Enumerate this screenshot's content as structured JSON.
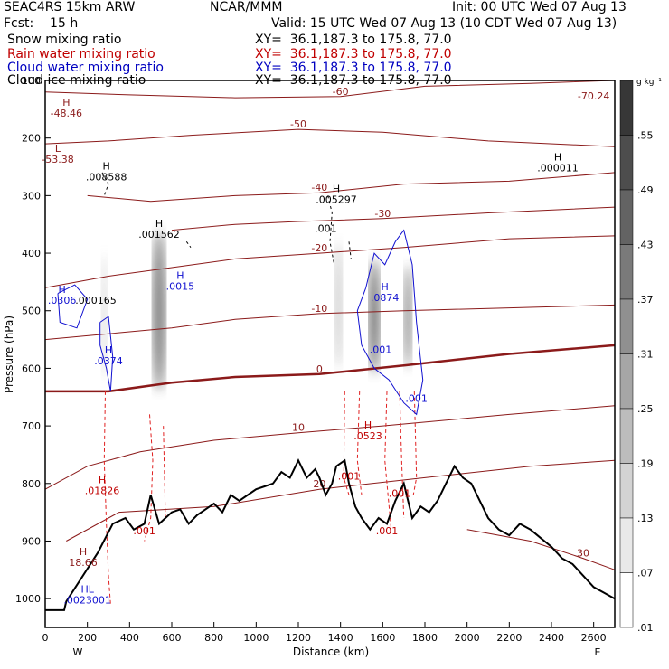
{
  "header": {
    "model": "SEAC4RS 15km ARW",
    "center": "NCAR/MMM",
    "init": "Init: 00 UTC Wed 07 Aug 13",
    "fcst": "Fcst:    15 h",
    "valid": "Valid: 15 UTC Wed 07 Aug 13 (10 CDT Wed 07 Aug 13)",
    "fields": [
      {
        "name": "Snow mixing ratio",
        "xy": "XY=  36.1,187.3 to 175.8, 77.0",
        "color": "#000000"
      },
      {
        "name": "Rain water mixing ratio",
        "xy": "XY=  36.1,187.3 to 175.8, 77.0",
        "color": "#c00000"
      },
      {
        "name": "Cloud water mixing ratio",
        "xy": "XY=  36.1,187.3 to 175.8, 77.0",
        "color": "#0000c0"
      },
      {
        "name": "Cloud ice mixing ratio",
        "xy": "XY=  36.1,187.3 to 175.8, 77.0",
        "color": "#000000"
      }
    ]
  },
  "chart_data": {
    "type": "cross-section",
    "xlabel": "Distance (km)",
    "ylabel": "Pressure (hPa)",
    "xlim": [
      0,
      2700
    ],
    "ylim": [
      1050,
      100
    ],
    "x_ticks": [
      0,
      200,
      400,
      600,
      800,
      1000,
      1200,
      1400,
      1600,
      1800,
      2000,
      2200,
      2400,
      2600
    ],
    "y_ticks": [
      100,
      200,
      300,
      400,
      500,
      600,
      700,
      800,
      900,
      1000
    ],
    "endpoints": {
      "left": "W",
      "right": "E"
    },
    "colorbar": {
      "unit": "g kg⁻¹",
      "labels": [
        ".55",
        ".49",
        ".43",
        ".37",
        ".31",
        ".25",
        ".19",
        ".13",
        ".07",
        ".01"
      ]
    },
    "colors": {
      "temperature": "#8b1a1a",
      "rain": "#e02020",
      "cloud": "#1010d0",
      "ice": "#000000",
      "terrain": "#000000"
    },
    "terrain": [
      [
        0,
        1020
      ],
      [
        90,
        1020
      ],
      [
        100,
        1005
      ],
      [
        250,
        920
      ],
      [
        320,
        870
      ],
      [
        380,
        860
      ],
      [
        420,
        880
      ],
      [
        470,
        870
      ],
      [
        500,
        820
      ],
      [
        540,
        870
      ],
      [
        570,
        860
      ],
      [
        600,
        850
      ],
      [
        640,
        845
      ],
      [
        680,
        870
      ],
      [
        720,
        855
      ],
      [
        760,
        845
      ],
      [
        800,
        835
      ],
      [
        840,
        850
      ],
      [
        880,
        820
      ],
      [
        920,
        830
      ],
      [
        960,
        820
      ],
      [
        1000,
        810
      ],
      [
        1040,
        805
      ],
      [
        1080,
        800
      ],
      [
        1120,
        780
      ],
      [
        1160,
        790
      ],
      [
        1200,
        760
      ],
      [
        1240,
        790
      ],
      [
        1280,
        775
      ],
      [
        1300,
        790
      ],
      [
        1330,
        820
      ],
      [
        1360,
        800
      ],
      [
        1380,
        770
      ],
      [
        1420,
        760
      ],
      [
        1440,
        800
      ],
      [
        1470,
        840
      ],
      [
        1500,
        860
      ],
      [
        1540,
        880
      ],
      [
        1580,
        860
      ],
      [
        1620,
        870
      ],
      [
        1660,
        830
      ],
      [
        1700,
        800
      ],
      [
        1740,
        860
      ],
      [
        1780,
        840
      ],
      [
        1820,
        850
      ],
      [
        1860,
        830
      ],
      [
        1900,
        800
      ],
      [
        1940,
        770
      ],
      [
        1980,
        790
      ],
      [
        2020,
        800
      ],
      [
        2060,
        830
      ],
      [
        2100,
        860
      ],
      [
        2150,
        880
      ],
      [
        2200,
        890
      ],
      [
        2250,
        870
      ],
      [
        2300,
        880
      ],
      [
        2350,
        895
      ],
      [
        2400,
        910
      ],
      [
        2450,
        930
      ],
      [
        2500,
        940
      ],
      [
        2550,
        960
      ],
      [
        2600,
        980
      ],
      [
        2650,
        990
      ],
      [
        2700,
        1000
      ]
    ],
    "isotherms": [
      {
        "label": "-60",
        "points": [
          [
            0,
            120
          ],
          [
            400,
            125
          ],
          [
            900,
            130
          ],
          [
            1400,
            128
          ],
          [
            1800,
            110
          ],
          [
            2300,
            105
          ],
          [
            2700,
            100
          ]
        ]
      },
      {
        "label": "-50",
        "points": [
          [
            0,
            210
          ],
          [
            300,
            205
          ],
          [
            700,
            195
          ],
          [
            1200,
            185
          ],
          [
            1600,
            190
          ],
          [
            2100,
            205
          ],
          [
            2700,
            215
          ]
        ]
      },
      {
        "label": "-40",
        "points": [
          [
            200,
            300
          ],
          [
            500,
            310
          ],
          [
            900,
            300
          ],
          [
            1300,
            295
          ],
          [
            1700,
            280
          ],
          [
            2200,
            275
          ],
          [
            2700,
            260
          ]
        ]
      },
      {
        "label": "-30",
        "points": [
          [
            600,
            360
          ],
          [
            900,
            350
          ],
          [
            1200,
            345
          ],
          [
            1600,
            340
          ],
          [
            2100,
            330
          ],
          [
            2700,
            320
          ]
        ]
      },
      {
        "label": "-20",
        "points": [
          [
            0,
            460
          ],
          [
            300,
            440
          ],
          [
            600,
            425
          ],
          [
            900,
            410
          ],
          [
            1300,
            400
          ],
          [
            1700,
            390
          ],
          [
            2200,
            375
          ],
          [
            2700,
            370
          ]
        ]
      },
      {
        "label": "-10",
        "points": [
          [
            0,
            550
          ],
          [
            300,
            540
          ],
          [
            600,
            530
          ],
          [
            900,
            515
          ],
          [
            1300,
            505
          ],
          [
            1700,
            500
          ],
          [
            2200,
            495
          ],
          [
            2700,
            490
          ]
        ]
      },
      {
        "label": "0",
        "points": [
          [
            0,
            640
          ],
          [
            300,
            640
          ],
          [
            600,
            625
          ],
          [
            900,
            615
          ],
          [
            1300,
            610
          ],
          [
            1700,
            595
          ],
          [
            2200,
            575
          ],
          [
            2700,
            560
          ]
        ],
        "bold": true
      },
      {
        "label": "10",
        "points": [
          [
            0,
            810
          ],
          [
            200,
            770
          ],
          [
            450,
            745
          ],
          [
            800,
            725
          ],
          [
            1200,
            712
          ],
          [
            1600,
            700
          ],
          [
            2200,
            680
          ],
          [
            2700,
            665
          ]
        ]
      },
      {
        "label": "20",
        "points": [
          [
            100,
            900
          ],
          [
            350,
            850
          ],
          [
            800,
            840
          ],
          [
            1300,
            810
          ],
          [
            1800,
            790
          ],
          [
            2300,
            770
          ],
          [
            2700,
            760
          ]
        ]
      },
      {
        "label": "30",
        "points": [
          [
            2000,
            880
          ],
          [
            2300,
            900
          ],
          [
            2550,
            930
          ],
          [
            2700,
            950
          ]
        ]
      }
    ],
    "maxima_labels": [
      {
        "x": 100,
        "y": 160,
        "text": "H",
        "sub": "-48.46",
        "color": "#8b1a1a"
      },
      {
        "x": 60,
        "y": 240,
        "text": "L",
        "sub": "-53.38",
        "color": "#8b1a1a"
      },
      {
        "x": 2600,
        "y": 130,
        "text": "",
        "sub": "-70.24",
        "color": "#8b1a1a"
      },
      {
        "x": 290,
        "y": 270,
        "text": "H",
        "sub": ".008588",
        "color": "#000000"
      },
      {
        "x": 540,
        "y": 370,
        "text": "H",
        "sub": ".001562",
        "color": "#000000"
      },
      {
        "x": 1380,
        "y": 310,
        "text": "H",
        "sub": ".005297",
        "color": "#000000"
      },
      {
        "x": 2430,
        "y": 255,
        "text": "H",
        "sub": ".000011",
        "color": "#000000"
      },
      {
        "x": 1330,
        "y": 360,
        "text": "",
        "sub": ".001",
        "color": "#000000"
      },
      {
        "x": 640,
        "y": 460,
        "text": "H",
        "sub": ".0015",
        "color": "#1010d0"
      },
      {
        "x": 80,
        "y": 485,
        "text": "H",
        "sub": ".0306",
        "color": "#1010d0"
      },
      {
        "x": 240,
        "y": 485,
        "text": "",
        "sub": ".000165",
        "color": "#000000"
      },
      {
        "x": 1610,
        "y": 480,
        "text": "H",
        "sub": ".0874",
        "color": "#1010d0"
      },
      {
        "x": 300,
        "y": 590,
        "text": "H",
        "sub": ".0374",
        "color": "#1010d0"
      },
      {
        "x": 1590,
        "y": 570,
        "text": "",
        "sub": ".001",
        "color": "#1010d0"
      },
      {
        "x": 1760,
        "y": 655,
        "text": "",
        "sub": ".001",
        "color": "#1010d0"
      },
      {
        "x": 1530,
        "y": 720,
        "text": "H",
        "sub": ".0523",
        "color": "#c00000"
      },
      {
        "x": 1440,
        "y": 790,
        "text": "",
        "sub": ".001",
        "color": "#c00000"
      },
      {
        "x": 1680,
        "y": 820,
        "text": "",
        "sub": ".001",
        "color": "#c00000"
      },
      {
        "x": 1620,
        "y": 885,
        "text": "",
        "sub": ".001",
        "color": "#c00000"
      },
      {
        "x": 270,
        "y": 815,
        "text": "H",
        "sub": ".01826",
        "color": "#c00000"
      },
      {
        "x": 470,
        "y": 885,
        "text": "",
        "sub": ".001",
        "color": "#c00000"
      },
      {
        "x": 180,
        "y": 940,
        "text": "H",
        "sub": "18.66",
        "color": "#8b1a1a"
      },
      {
        "x": 200,
        "y": 1005,
        "text": "HL",
        "sub": ".0023001",
        "color": "#1010d0"
      }
    ],
    "snow_columns": [
      {
        "x": 540,
        "y_top": 360,
        "y_bot": 640,
        "width": 60,
        "peak": 0.45
      },
      {
        "x": 280,
        "y_top": 400,
        "y_bot": 620,
        "width": 25,
        "peak": 0.15
      },
      {
        "x": 1390,
        "y_top": 380,
        "y_bot": 600,
        "width": 35,
        "peak": 0.2
      },
      {
        "x": 1560,
        "y_top": 410,
        "y_bot": 610,
        "width": 50,
        "peak": 0.5
      },
      {
        "x": 1720,
        "y_top": 420,
        "y_bot": 600,
        "width": 35,
        "peak": 0.45
      }
    ],
    "dashed_rain": [
      [
        [
          285,
          640
        ],
        [
          280,
          760
        ],
        [
          290,
          870
        ],
        [
          300,
          960
        ],
        [
          310,
          1010
        ]
      ],
      [
        [
          495,
          680
        ],
        [
          510,
          760
        ],
        [
          500,
          860
        ],
        [
          470,
          900
        ]
      ],
      [
        [
          560,
          700
        ],
        [
          570,
          860
        ]
      ],
      [
        [
          1420,
          640
        ],
        [
          1415,
          790
        ],
        [
          1440,
          820
        ]
      ],
      [
        [
          1490,
          640
        ],
        [
          1480,
          760
        ],
        [
          1500,
          820
        ]
      ],
      [
        [
          1620,
          640
        ],
        [
          1610,
          760
        ],
        [
          1640,
          880
        ]
      ],
      [
        [
          1680,
          640
        ],
        [
          1690,
          760
        ],
        [
          1700,
          860
        ]
      ],
      [
        [
          1750,
          640
        ],
        [
          1760,
          790
        ],
        [
          1745,
          820
        ]
      ]
    ],
    "cloud_contours": [
      [
        [
          60,
          470
        ],
        [
          140,
          455
        ],
        [
          200,
          480
        ],
        [
          150,
          530
        ],
        [
          70,
          520
        ],
        [
          60,
          470
        ]
      ],
      [
        [
          260,
          520
        ],
        [
          300,
          510
        ],
        [
          320,
          580
        ],
        [
          310,
          640
        ],
        [
          290,
          600
        ],
        [
          260,
          560
        ],
        [
          260,
          520
        ]
      ],
      [
        [
          1520,
          460
        ],
        [
          1560,
          400
        ],
        [
          1610,
          420
        ],
        [
          1660,
          380
        ],
        [
          1700,
          360
        ],
        [
          1740,
          420
        ],
        [
          1760,
          520
        ],
        [
          1790,
          620
        ],
        [
          1760,
          680
        ],
        [
          1700,
          660
        ],
        [
          1630,
          620
        ],
        [
          1560,
          600
        ],
        [
          1500,
          560
        ],
        [
          1480,
          500
        ],
        [
          1520,
          460
        ]
      ]
    ],
    "ice_dashed": [
      [
        [
          270,
          260
        ],
        [
          300,
          280
        ],
        [
          280,
          300
        ]
      ],
      [
        [
          1340,
          300
        ],
        [
          1360,
          330
        ],
        [
          1350,
          380
        ],
        [
          1370,
          420
        ]
      ],
      [
        [
          1440,
          380
        ],
        [
          1450,
          410
        ]
      ],
      [
        [
          670,
          380
        ],
        [
          690,
          390
        ]
      ]
    ]
  }
}
